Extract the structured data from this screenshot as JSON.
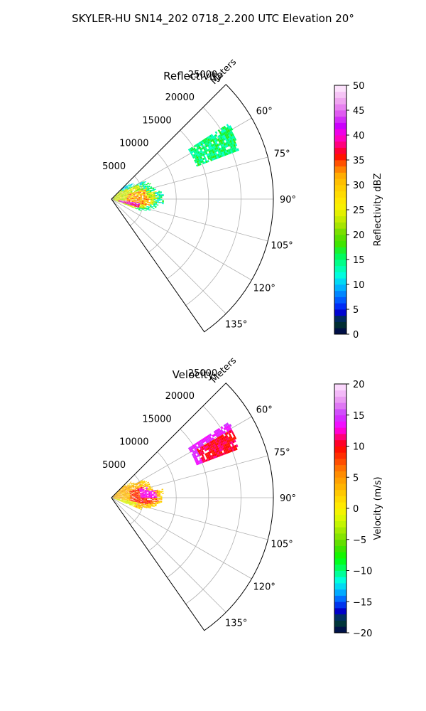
{
  "figure": {
    "title": "SKYLER-HU  SN14_202  0718_2.200 UTC Elevation 20°"
  },
  "chart_data": [
    {
      "type": "heatmap",
      "subtype": "polar-sector",
      "title": "Reflectivity",
      "range_axis_label": "Meters",
      "range_ticks": [
        "5000",
        "10000",
        "15000",
        "20000",
        "25000"
      ],
      "range_tick_values": [
        5000,
        10000,
        15000,
        20000,
        25000
      ],
      "range_max": 25000,
      "azimuth_ticks": [
        "60°",
        "75°",
        "90°",
        "105°",
        "120°",
        "135°"
      ],
      "azimuth_tick_values": [
        60,
        75,
        90,
        105,
        120,
        135
      ],
      "azimuth_range": [
        45,
        145
      ],
      "grid": true,
      "colorbar": {
        "label": "Reflectivity dBZ",
        "ticks": [
          "0",
          "5",
          "10",
          "15",
          "20",
          "25",
          "30",
          "35",
          "40",
          "45",
          "50"
        ],
        "range": [
          0,
          50
        ],
        "colormap": "NWSRef"
      },
      "echo_regions": [
        {
          "az_range": [
            45,
            110
          ],
          "r_range": [
            0,
            8500
          ],
          "value_range": [
            10,
            45
          ],
          "dominant": "green-yellow",
          "peak": "magenta near 100° 2000-4000 m"
        },
        {
          "az_range": [
            58,
            68
          ],
          "r_range": [
            14000,
            21000
          ],
          "value_range": [
            12,
            18
          ],
          "dominant": "green"
        }
      ]
    },
    {
      "type": "heatmap",
      "subtype": "polar-sector",
      "title": "Velocity",
      "range_axis_label": "Meters",
      "range_ticks": [
        "5000",
        "10000",
        "15000",
        "20000",
        "25000"
      ],
      "range_tick_values": [
        5000,
        10000,
        15000,
        20000,
        25000
      ],
      "range_max": 25000,
      "azimuth_ticks": [
        "60°",
        "75°",
        "90°",
        "105°",
        "120°",
        "135°"
      ],
      "azimuth_tick_values": [
        60,
        75,
        90,
        105,
        120,
        135
      ],
      "azimuth_range": [
        45,
        145
      ],
      "grid": true,
      "colorbar": {
        "label": "Velocity (m/s)",
        "ticks": [
          "−20",
          "−15",
          "−10",
          "−5",
          "0",
          "5",
          "10",
          "15",
          "20"
        ],
        "range": [
          -20,
          20
        ],
        "colormap": "NWSVel"
      },
      "echo_regions": [
        {
          "az_range": [
            45,
            110
          ],
          "r_range": [
            0,
            8500
          ],
          "value_range": [
            -3,
            12
          ],
          "dominant": "yellow-orange-red",
          "peak": "magenta near 85° 4000-6500 m"
        },
        {
          "az_range": [
            58,
            68
          ],
          "r_range": [
            14000,
            21000
          ],
          "value_range": [
            9,
            14
          ],
          "dominant": "red",
          "edge": "magenta"
        }
      ]
    }
  ]
}
